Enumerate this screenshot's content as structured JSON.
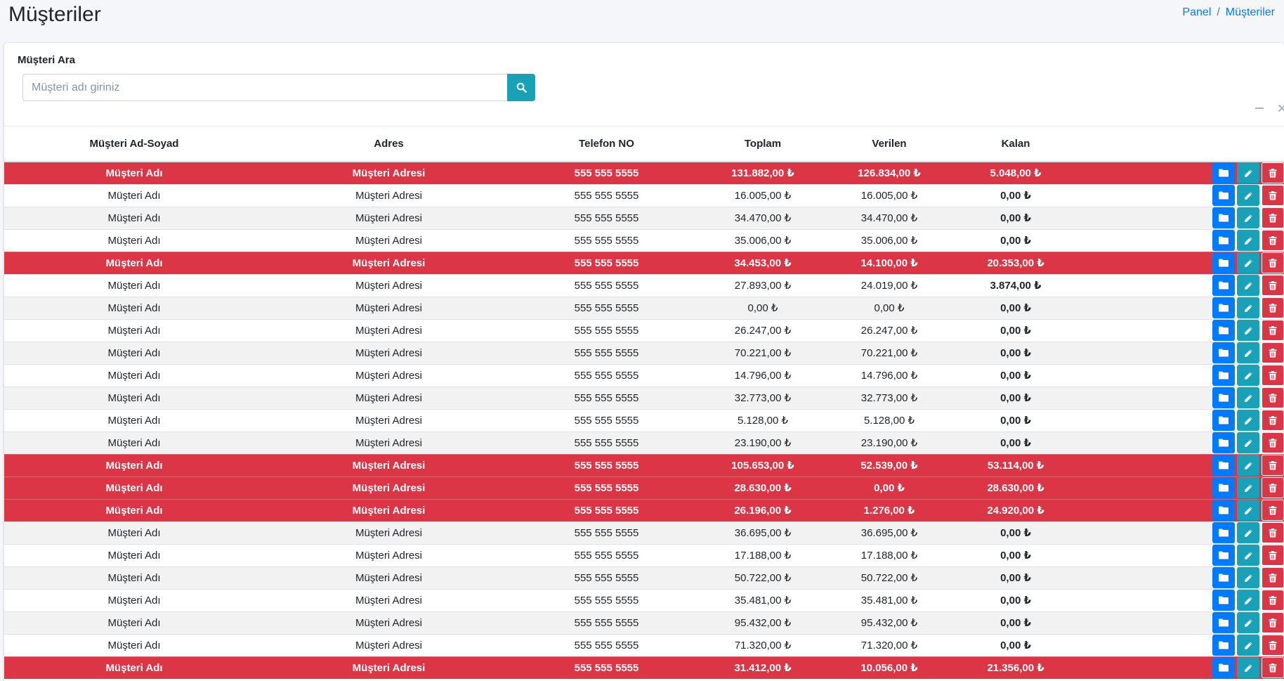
{
  "header": {
    "title": "Müşteriler",
    "breadcrumb": [
      {
        "label": "Panel"
      },
      {
        "label": "Müşteriler"
      }
    ],
    "breadcrumb_separator": "/"
  },
  "search": {
    "label": "Müşteri Ara",
    "placeholder": "Müşteri adı giriniz"
  },
  "colors": {
    "danger": "#dc3545",
    "primary": "#007bff",
    "info": "#17a2b8"
  },
  "table": {
    "columns": [
      "Müşteri Ad-Soyad",
      "Adres",
      "Telefon NO",
      "Toplam",
      "Verilen",
      "Kalan"
    ],
    "rows": [
      {
        "name": "Müşteri Adı",
        "address": "Müşteri Adresi",
        "phone": "555 555 5555",
        "total": "131.882,00 ₺",
        "paid": "126.834,00 ₺",
        "remaining": "5.048,00 ₺",
        "debt": true
      },
      {
        "name": "Müşteri Adı",
        "address": "Müşteri Adresi",
        "phone": "555 555 5555",
        "total": "16.005,00 ₺",
        "paid": "16.005,00 ₺",
        "remaining": "0,00 ₺",
        "debt": false
      },
      {
        "name": "Müşteri Adı",
        "address": "Müşteri Adresi",
        "phone": "555 555 5555",
        "total": "34.470,00 ₺",
        "paid": "34.470,00 ₺",
        "remaining": "0,00 ₺",
        "debt": false
      },
      {
        "name": "Müşteri Adı",
        "address": "Müşteri Adresi",
        "phone": "555 555 5555",
        "total": "35.006,00 ₺",
        "paid": "35.006,00 ₺",
        "remaining": "0,00 ₺",
        "debt": false
      },
      {
        "name": "Müşteri Adı",
        "address": "Müşteri Adresi",
        "phone": "555 555 5555",
        "total": "34.453,00 ₺",
        "paid": "14.100,00 ₺",
        "remaining": "20.353,00 ₺",
        "debt": true
      },
      {
        "name": "Müşteri Adı",
        "address": "Müşteri Adresi",
        "phone": "555 555 5555",
        "total": "27.893,00 ₺",
        "paid": "24.019,00 ₺",
        "remaining": "3.874,00 ₺",
        "debt": false
      },
      {
        "name": "Müşteri Adı",
        "address": "Müşteri Adresi",
        "phone": "555 555 5555",
        "total": "0,00 ₺",
        "paid": "0,00 ₺",
        "remaining": "0,00 ₺",
        "debt": false
      },
      {
        "name": "Müşteri Adı",
        "address": "Müşteri Adresi",
        "phone": "555 555 5555",
        "total": "26.247,00 ₺",
        "paid": "26.247,00 ₺",
        "remaining": "0,00 ₺",
        "debt": false
      },
      {
        "name": "Müşteri Adı",
        "address": "Müşteri Adresi",
        "phone": "555 555 5555",
        "total": "70.221,00 ₺",
        "paid": "70.221,00 ₺",
        "remaining": "0,00 ₺",
        "debt": false
      },
      {
        "name": "Müşteri Adı",
        "address": "Müşteri Adresi",
        "phone": "555 555 5555",
        "total": "14.796,00 ₺",
        "paid": "14.796,00 ₺",
        "remaining": "0,00 ₺",
        "debt": false
      },
      {
        "name": "Müşteri Adı",
        "address": "Müşteri Adresi",
        "phone": "555 555 5555",
        "total": "32.773,00 ₺",
        "paid": "32.773,00 ₺",
        "remaining": "0,00 ₺",
        "debt": false
      },
      {
        "name": "Müşteri Adı",
        "address": "Müşteri Adresi",
        "phone": "555 555 5555",
        "total": "5.128,00 ₺",
        "paid": "5.128,00 ₺",
        "remaining": "0,00 ₺",
        "debt": false
      },
      {
        "name": "Müşteri Adı",
        "address": "Müşteri Adresi",
        "phone": "555 555 5555",
        "total": "23.190,00 ₺",
        "paid": "23.190,00 ₺",
        "remaining": "0,00 ₺",
        "debt": false
      },
      {
        "name": "Müşteri Adı",
        "address": "Müşteri Adresi",
        "phone": "555 555 5555",
        "total": "105.653,00 ₺",
        "paid": "52.539,00 ₺",
        "remaining": "53.114,00 ₺",
        "debt": true
      },
      {
        "name": "Müşteri Adı",
        "address": "Müşteri Adresi",
        "phone": "555 555 5555",
        "total": "28.630,00 ₺",
        "paid": "0,00 ₺",
        "remaining": "28.630,00 ₺",
        "debt": true
      },
      {
        "name": "Müşteri Adı",
        "address": "Müşteri Adresi",
        "phone": "555 555 5555",
        "total": "26.196,00 ₺",
        "paid": "1.276,00 ₺",
        "remaining": "24.920,00 ₺",
        "debt": true
      },
      {
        "name": "Müşteri Adı",
        "address": "Müşteri Adresi",
        "phone": "555 555 5555",
        "total": "36.695,00 ₺",
        "paid": "36.695,00 ₺",
        "remaining": "0,00 ₺",
        "debt": false
      },
      {
        "name": "Müşteri Adı",
        "address": "Müşteri Adresi",
        "phone": "555 555 5555",
        "total": "17.188,00 ₺",
        "paid": "17.188,00 ₺",
        "remaining": "0,00 ₺",
        "debt": false
      },
      {
        "name": "Müşteri Adı",
        "address": "Müşteri Adresi",
        "phone": "555 555 5555",
        "total": "50.722,00 ₺",
        "paid": "50.722,00 ₺",
        "remaining": "0,00 ₺",
        "debt": false
      },
      {
        "name": "Müşteri Adı",
        "address": "Müşteri Adresi",
        "phone": "555 555 5555",
        "total": "35.481,00 ₺",
        "paid": "35.481,00 ₺",
        "remaining": "0,00 ₺",
        "debt": false
      },
      {
        "name": "Müşteri Adı",
        "address": "Müşteri Adresi",
        "phone": "555 555 5555",
        "total": "95.432,00 ₺",
        "paid": "95.432,00 ₺",
        "remaining": "0,00 ₺",
        "debt": false
      },
      {
        "name": "Müşteri Adı",
        "address": "Müşteri Adresi",
        "phone": "555 555 5555",
        "total": "71.320,00 ₺",
        "paid": "71.320,00 ₺",
        "remaining": "0,00 ₺",
        "debt": false
      },
      {
        "name": "Müşteri Adı",
        "address": "Müşteri Adresi",
        "phone": "555 555 5555",
        "total": "31.412,00 ₺",
        "paid": "10.056,00 ₺",
        "remaining": "21.356,00 ₺",
        "debt": true
      }
    ],
    "row_actions": [
      {
        "icon": "folder-icon"
      },
      {
        "icon": "pencil-icon"
      },
      {
        "icon": "trash-icon"
      }
    ]
  }
}
